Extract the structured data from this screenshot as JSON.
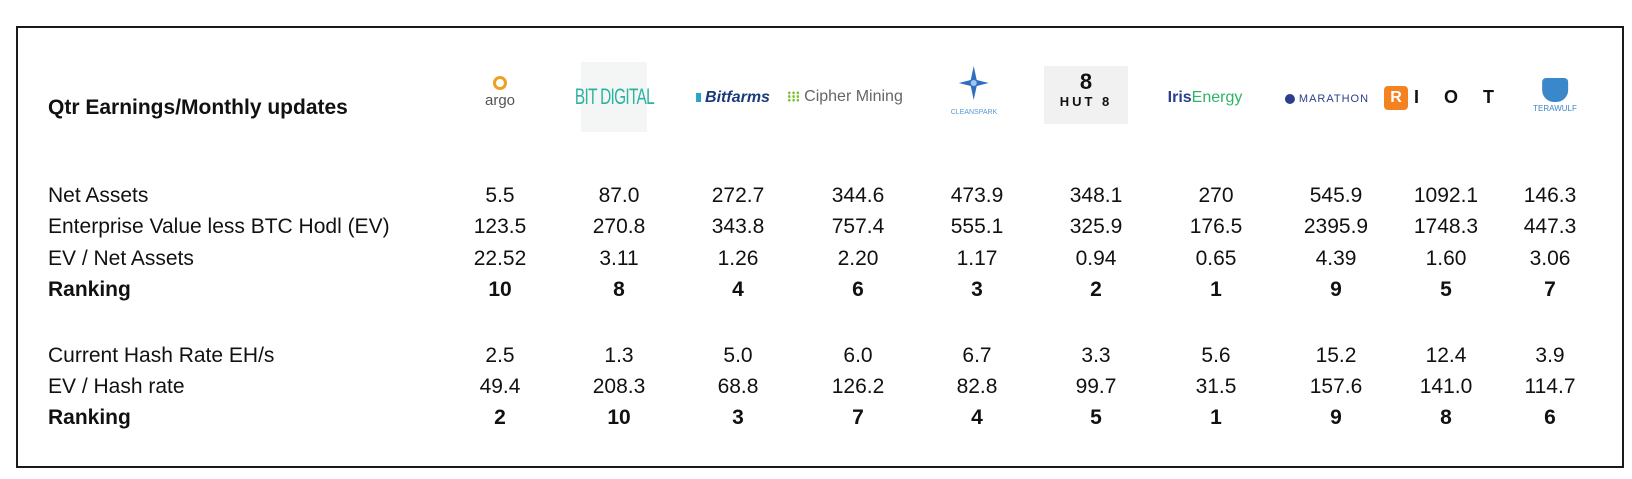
{
  "title": "Qtr Earnings/Monthly updates",
  "companies": [
    {
      "name": "argo"
    },
    {
      "name": "BIT DIGITAL"
    },
    {
      "name": "Bitfarms"
    },
    {
      "name": "Cipher Mining"
    },
    {
      "name": "CLEANSPARK"
    },
    {
      "name": "HUT 8"
    },
    {
      "name_a": "Iris",
      "name_b": "Energy"
    },
    {
      "name": "MARATHON"
    },
    {
      "mark": "R",
      "name": "I O T"
    },
    {
      "name": "TERAWULF"
    }
  ],
  "rows": [
    {
      "label": "Net Assets",
      "bold": false,
      "values": [
        "5.5",
        "87.0",
        "272.7",
        "344.6",
        "473.9",
        "348.1",
        "270",
        "545.9",
        "1092.1",
        "146.3"
      ]
    },
    {
      "label": "Enterprise Value less BTC Hodl (EV)",
      "bold": false,
      "values": [
        "123.5",
        "270.8",
        "343.8",
        "757.4",
        "555.1",
        "325.9",
        "176.5",
        "2395.9",
        "1748.3",
        "447.3"
      ]
    },
    {
      "label": "EV / Net Assets",
      "bold": false,
      "values": [
        "22.52",
        "3.11",
        "1.26",
        "2.20",
        "1.17",
        "0.94",
        "0.65",
        "4.39",
        "1.60",
        "3.06"
      ]
    },
    {
      "label": "Ranking",
      "bold": true,
      "values": [
        "10",
        "8",
        "4",
        "6",
        "3",
        "2",
        "1",
        "9",
        "5",
        "7"
      ]
    },
    {
      "label": "Current Hash Rate EH/s",
      "bold": false,
      "values": [
        "2.5",
        "1.3",
        "5.0",
        "6.0",
        "6.7",
        "3.3",
        "5.6",
        "15.2",
        "12.4",
        "3.9"
      ]
    },
    {
      "label": "EV / Hash rate",
      "bold": false,
      "values": [
        "49.4",
        "208.3",
        "68.8",
        "126.2",
        "82.8",
        "99.7",
        "31.5",
        "157.6",
        "141.0",
        "114.7"
      ]
    },
    {
      "label": "Ranking",
      "bold": true,
      "values": [
        "2",
        "10",
        "3",
        "7",
        "4",
        "5",
        "1",
        "9",
        "8",
        "6"
      ]
    }
  ]
}
